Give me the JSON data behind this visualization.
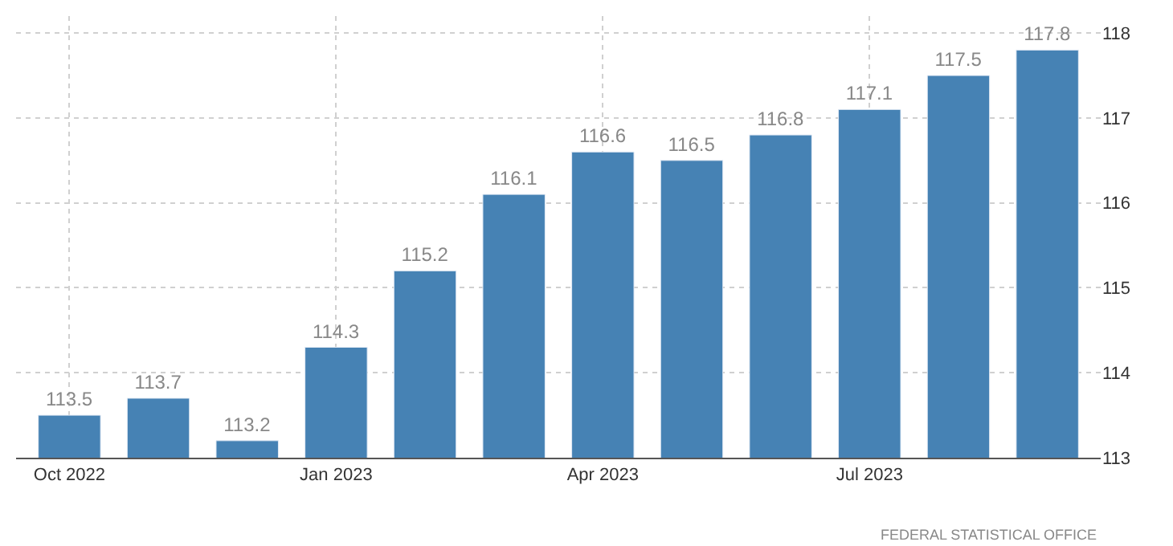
{
  "chart_data": {
    "type": "bar",
    "categories": [
      "Oct 2022",
      null,
      null,
      "Jan 2023",
      null,
      null,
      "Apr 2023",
      null,
      null,
      "Jul 2023",
      null,
      null
    ],
    "values": [
      113.5,
      113.7,
      113.2,
      114.3,
      115.2,
      116.1,
      116.6,
      116.5,
      116.8,
      117.1,
      117.5,
      117.8
    ],
    "color": "#4682b4",
    "data_labels": true,
    "ylim": [
      113,
      118.2
    ],
    "yticks": [
      113,
      114,
      115,
      116,
      117,
      118
    ],
    "grid": true,
    "annotations": [
      "FEDERAL STATISTICAL OFFICE"
    ]
  }
}
